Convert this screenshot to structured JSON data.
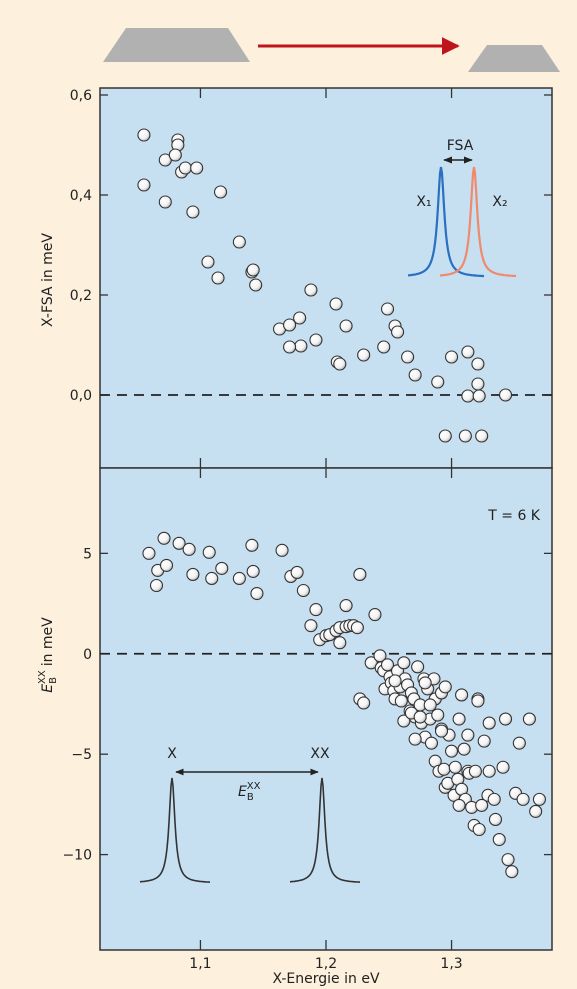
{
  "chart_data": [
    {
      "type": "scatter",
      "ylabel": "X-FSA in meV",
      "annotations": [
        "FSA",
        "X₁",
        "X₂"
      ],
      "xlim": [
        1.02,
        1.38
      ],
      "ylim": [
        -0.146,
        0.614
      ],
      "yticks": [
        {
          "value": 0.6,
          "label": "0,6"
        },
        {
          "value": 0.4,
          "label": "0,4"
        },
        {
          "value": 0.2,
          "label": "0,2"
        },
        {
          "value": 0,
          "label": "0,0"
        }
      ],
      "reference_line": 0,
      "x": [
        1.055,
        1.055,
        1.072,
        1.072,
        1.082,
        1.082,
        1.08,
        1.085,
        1.088,
        1.097,
        1.094,
        1.116,
        1.106,
        1.114,
        1.131,
        1.141,
        1.142,
        1.144,
        1.163,
        1.171,
        1.179,
        1.18,
        1.171,
        1.188,
        1.192,
        1.208,
        1.209,
        1.211,
        1.216,
        1.23,
        1.246,
        1.249,
        1.255,
        1.257,
        1.265,
        1.271,
        1.289,
        1.295,
        1.3,
        1.311,
        1.313,
        1.313,
        1.321,
        1.321,
        1.322,
        1.324,
        1.343
      ],
      "values": [
        0.52,
        0.42,
        0.47,
        0.386,
        0.51,
        0.5,
        0.48,
        0.446,
        0.454,
        0.454,
        0.366,
        0.406,
        0.266,
        0.234,
        0.306,
        0.246,
        0.25,
        0.22,
        0.132,
        0.14,
        0.154,
        0.098,
        0.096,
        0.21,
        0.11,
        0.182,
        0.066,
        0.062,
        0.138,
        0.08,
        0.096,
        0.172,
        0.138,
        0.126,
        0.076,
        0.04,
        0.026,
        -0.082,
        0.076,
        -0.082,
        0.086,
        -0.002,
        0.062,
        0.022,
        -0.002,
        -0.082,
        0
      ]
    },
    {
      "type": "scatter",
      "xlabel": "X-Energie in eV",
      "ylabel": {
        "symbol": "E",
        "sub": "B",
        "sup": "XX",
        "text": "in meV"
      },
      "annotation": "T = 6 K",
      "peak_labels": [
        "X",
        "XX"
      ],
      "xlim": [
        1.02,
        1.38
      ],
      "ylim": [
        -14.75,
        9.25
      ],
      "xticks": [
        {
          "value": 1.1,
          "label": "1,1"
        },
        {
          "value": 1.2,
          "label": "1,2"
        },
        {
          "value": 1.3,
          "label": "1,3"
        }
      ],
      "yticks": [
        5,
        0,
        {
          "value": -5,
          "label": "−5"
        },
        {
          "value": -10,
          "label": "−10"
        }
      ],
      "reference_line": 0,
      "x": [
        1.059,
        1.065,
        1.066,
        1.071,
        1.073,
        1.083,
        1.091,
        1.094,
        1.107,
        1.109,
        1.117,
        1.131,
        1.141,
        1.142,
        1.145,
        1.165,
        1.172,
        1.177,
        1.182,
        1.188,
        1.192,
        1.195,
        1.2,
        1.203,
        1.208,
        1.211,
        1.211,
        1.216,
        1.216,
        1.219,
        1.222,
        1.225,
        1.227,
        1.227,
        1.23,
        1.236,
        1.239,
        1.243,
        1.244,
        1.246,
        1.247,
        1.249,
        1.251,
        1.252,
        1.254,
        1.255,
        1.257,
        1.259,
        1.26,
        1.262,
        1.263,
        1.265,
        1.267,
        1.268,
        1.27,
        1.271,
        1.273,
        1.275,
        1.276,
        1.278,
        1.279,
        1.281,
        1.283,
        1.284,
        1.286,
        1.287,
        1.289,
        1.29,
        1.292,
        1.294,
        1.295,
        1.297,
        1.298,
        1.3,
        1.302,
        1.303,
        1.305,
        1.306,
        1.308,
        1.31,
        1.311,
        1.313,
        1.314,
        1.316,
        1.318,
        1.319,
        1.321,
        1.322,
        1.326,
        1.329,
        1.33,
        1.334,
        1.335,
        1.338,
        1.341,
        1.343,
        1.345,
        1.348,
        1.351,
        1.354,
        1.357,
        1.362,
        1.367,
        1.37,
        1.279,
        1.287,
        1.292,
        1.308,
        1.313,
        1.321,
        1.33,
        1.306,
        1.324,
        1.292,
        1.271,
        1.262,
        1.268,
        1.283,
        1.255,
        1.275,
        1.295
      ],
      "values": [
        5,
        3.4,
        4.15,
        5.75,
        4.4,
        5.5,
        5.2,
        3.95,
        5.05,
        3.75,
        4.25,
        3.75,
        5.4,
        4.1,
        3,
        5.15,
        3.85,
        4.05,
        3.15,
        1.4,
        2.2,
        0.7,
        0.9,
        0.95,
        1.15,
        1.3,
        0.55,
        1.35,
        2.4,
        1.4,
        1.4,
        1.3,
        3.95,
        -2.25,
        -2.45,
        -0.45,
        1.95,
        -0.1,
        -0.7,
        -0.85,
        -1.75,
        -0.55,
        -1.15,
        -1.45,
        -1.85,
        -2.25,
        -0.85,
        -1.65,
        -2.35,
        -0.45,
        -1.25,
        -1.55,
        -2.85,
        -1.95,
        -2.25,
        -3.15,
        -0.65,
        -2.55,
        -3.45,
        -1.25,
        -4.15,
        -1.75,
        -3.25,
        -4.45,
        -1.25,
        -5.35,
        -3.05,
        -5.85,
        -3.75,
        -5.75,
        -6.65,
        -6.45,
        -4.05,
        -4.85,
        -7.05,
        -5.65,
        -6.25,
        -3.25,
        -6.75,
        -4.75,
        -7.25,
        -5.85,
        -5.95,
        -7.65,
        -8.55,
        -5.85,
        -2.25,
        -8.75,
        -4.35,
        -7.05,
        -5.85,
        -7.25,
        -8.25,
        -9.25,
        -5.65,
        -3.25,
        -10.25,
        -10.85,
        -6.95,
        -4.45,
        -7.25,
        -3.25,
        -7.85,
        -7.25,
        -1.45,
        -2.25,
        -1.95,
        -2.05,
        -4.05,
        -2.35,
        -3.45,
        -7.55,
        -7.55,
        -3.85,
        -4.25,
        -3.35,
        -2.95,
        -2.55,
        -1.35,
        -3.15,
        -1.65
      ]
    }
  ]
}
